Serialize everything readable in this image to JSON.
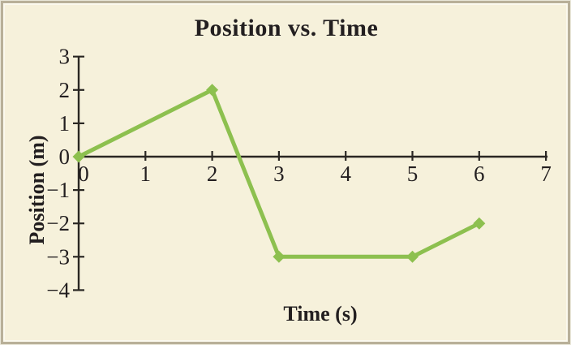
{
  "colors": {
    "background": "#f6f1db",
    "frame": "#b9b099",
    "frame_inner_line": "#fbf9ee",
    "axis": "#2a2723",
    "text": "#231f20",
    "series": "#8dc04f"
  },
  "chart_data": {
    "type": "line",
    "title": "Position vs. Time",
    "xlabel": "Time (s)",
    "ylabel": "Position (m)",
    "xlim": [
      0,
      7
    ],
    "ylim": [
      -4,
      3
    ],
    "grid": false,
    "legend": false,
    "marker": "diamond",
    "xticks": [
      {
        "v": 0,
        "label": "0"
      },
      {
        "v": 1,
        "label": "1"
      },
      {
        "v": 2,
        "label": "2"
      },
      {
        "v": 3,
        "label": "3"
      },
      {
        "v": 4,
        "label": "4"
      },
      {
        "v": 5,
        "label": "5"
      },
      {
        "v": 6,
        "label": "6"
      },
      {
        "v": 7,
        "label": "7"
      }
    ],
    "yticks": [
      {
        "v": 3,
        "label": "3"
      },
      {
        "v": 2,
        "label": "2"
      },
      {
        "v": 1,
        "label": "1"
      },
      {
        "v": 0,
        "label": "0"
      },
      {
        "v": -1,
        "label": "−1"
      },
      {
        "v": -2,
        "label": "−2"
      },
      {
        "v": -3,
        "label": "−3"
      },
      {
        "v": -4,
        "label": "−4"
      }
    ],
    "series": [
      {
        "name": "position",
        "x": [
          0,
          2,
          3,
          5,
          6
        ],
        "y": [
          0,
          2,
          -3,
          -3,
          -2
        ]
      }
    ]
  }
}
